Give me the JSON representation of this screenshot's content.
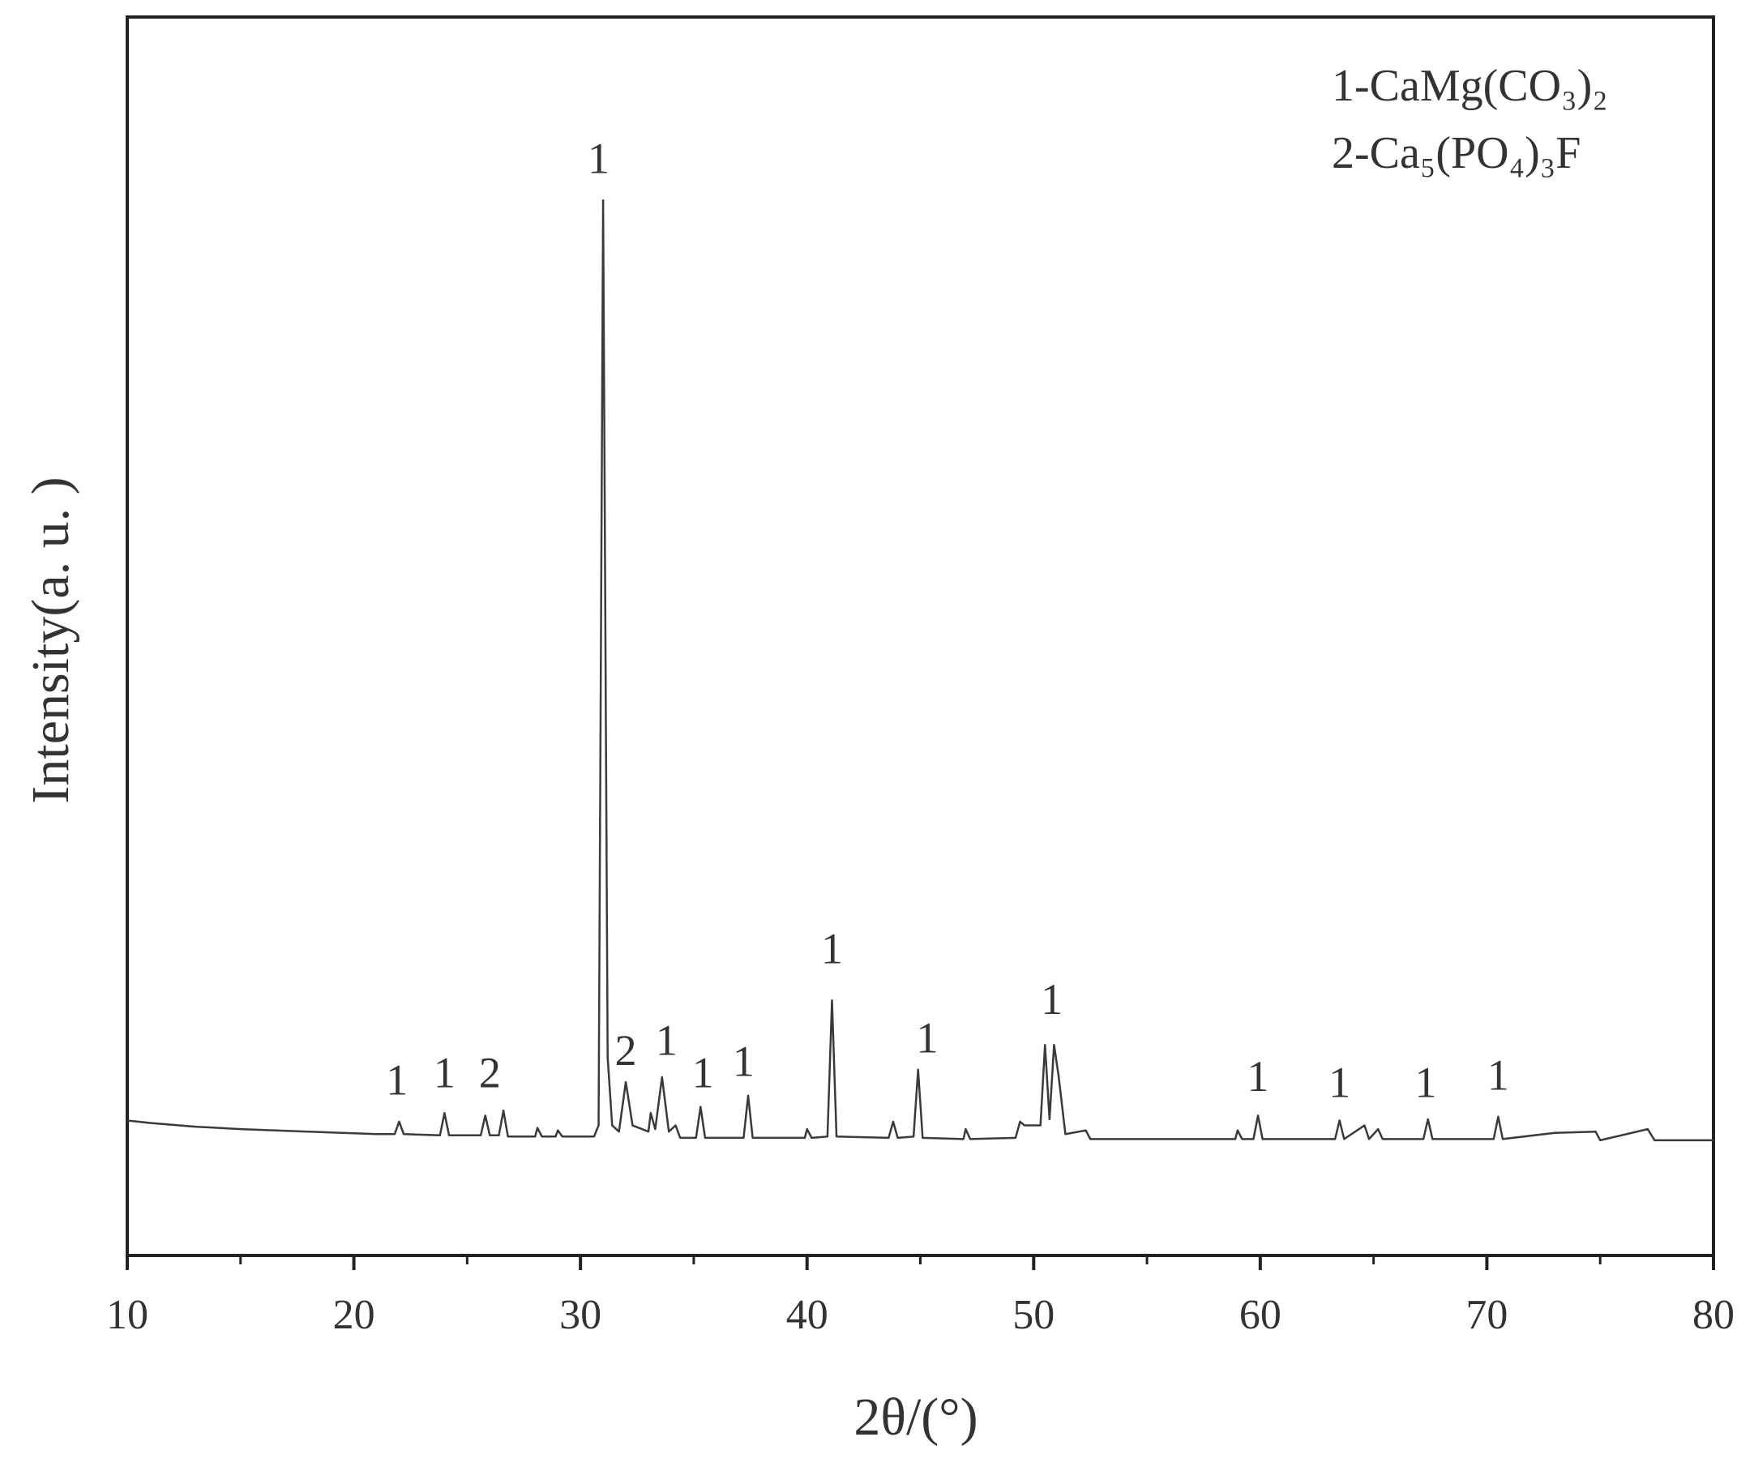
{
  "chart_data": {
    "type": "line",
    "xlabel": "2θ/(°)",
    "ylabel": "Intensity(a. u. )",
    "color": "#3a3a3a",
    "xlim": [
      10,
      80
    ],
    "xticks": [
      10,
      20,
      30,
      40,
      50,
      60,
      70,
      80
    ],
    "xminorticks": [
      15,
      25,
      35,
      45,
      55,
      65,
      75
    ],
    "ylim": [
      0,
      100
    ],
    "legend": {
      "position": "upper right",
      "entries": [
        "1-CaMg(CO₃)₂",
        "2-Ca₅(PO₄)₃F"
      ]
    },
    "x": [
      10.0,
      11.0,
      13.0,
      15.0,
      18.0,
      21.0,
      21.8,
      22.0,
      22.2,
      23.8,
      24.0,
      24.2,
      25.6,
      25.8,
      26.0,
      26.4,
      26.6,
      26.8,
      28.0,
      28.1,
      28.3,
      28.9,
      29.0,
      29.2,
      30.6,
      30.8,
      31.0,
      31.2,
      31.4,
      31.7,
      32.0,
      32.3,
      33.0,
      33.1,
      33.3,
      33.6,
      33.9,
      34.2,
      34.4,
      35.1,
      35.3,
      35.5,
      37.2,
      37.4,
      37.6,
      39.9,
      40.0,
      40.2,
      40.9,
      41.1,
      41.3,
      43.6,
      43.8,
      44.0,
      44.7,
      44.9,
      45.1,
      46.9,
      47.0,
      47.2,
      49.2,
      49.4,
      49.6,
      50.3,
      50.5,
      50.7,
      50.9,
      51.1,
      51.4,
      52.3,
      52.5,
      58.9,
      59.0,
      59.2,
      59.7,
      59.9,
      60.1,
      63.3,
      63.5,
      63.7,
      64.6,
      64.8,
      65.2,
      65.4,
      67.2,
      67.4,
      67.6,
      70.3,
      70.5,
      70.7,
      73.0,
      74.8,
      75.0,
      77.1,
      77.4,
      80.0
    ],
    "values": [
      10.9,
      10.7,
      10.4,
      10.2,
      10.0,
      9.8,
      9.8,
      10.8,
      9.8,
      9.7,
      11.5,
      9.7,
      9.7,
      11.3,
      9.7,
      9.7,
      11.7,
      9.6,
      9.6,
      10.3,
      9.6,
      9.6,
      10.1,
      9.6,
      9.6,
      10.5,
      85.2,
      16.0,
      10.5,
      10.0,
      14.0,
      10.5,
      10.0,
      11.5,
      10.2,
      14.4,
      10.0,
      10.5,
      9.5,
      9.5,
      12.0,
      9.5,
      9.5,
      12.9,
      9.5,
      9.5,
      10.2,
      9.5,
      9.6,
      20.6,
      9.6,
      9.5,
      10.8,
      9.5,
      9.6,
      15.0,
      9.5,
      9.4,
      10.2,
      9.4,
      9.5,
      10.8,
      10.5,
      10.5,
      17.0,
      11.0,
      17.0,
      14.5,
      9.8,
      10.1,
      9.4,
      9.4,
      10.1,
      9.4,
      9.4,
      11.3,
      9.4,
      9.4,
      10.9,
      9.4,
      10.5,
      9.4,
      10.2,
      9.4,
      9.4,
      11.0,
      9.4,
      9.4,
      11.2,
      9.4,
      9.9,
      10.0,
      9.3,
      10.2,
      9.3,
      9.3
    ],
    "annotations": [
      {
        "text": "1",
        "x": 21.9,
        "y": 13.8
      },
      {
        "text": "1",
        "x": 24.0,
        "y": 14.4
      },
      {
        "text": "2",
        "x": 26.0,
        "y": 14.4
      },
      {
        "text": "1",
        "x": 30.8,
        "y": 88.2
      },
      {
        "text": "2",
        "x": 32.0,
        "y": 16.2
      },
      {
        "text": "1",
        "x": 33.8,
        "y": 17.0
      },
      {
        "text": "1",
        "x": 35.4,
        "y": 14.4
      },
      {
        "text": "1",
        "x": 37.2,
        "y": 15.3
      },
      {
        "text": "1",
        "x": 41.1,
        "y": 24.4
      },
      {
        "text": "1",
        "x": 45.3,
        "y": 17.2
      },
      {
        "text": "1",
        "x": 50.8,
        "y": 20.3
      },
      {
        "text": "1",
        "x": 59.9,
        "y": 14.1
      },
      {
        "text": "1",
        "x": 63.5,
        "y": 13.6
      },
      {
        "text": "1",
        "x": 67.3,
        "y": 13.6
      },
      {
        "text": "1",
        "x": 70.5,
        "y": 14.2
      }
    ]
  }
}
